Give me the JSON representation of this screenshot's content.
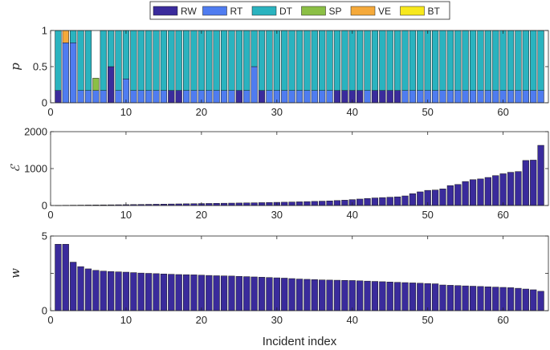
{
  "chart_data": [
    {
      "type": "bar",
      "stacked": true,
      "ylabel": "p",
      "ylim": [
        0,
        1
      ],
      "yticks": [
        0,
        0.5,
        1
      ],
      "ytick_labels": [
        "0",
        "0.5",
        "1"
      ],
      "xlim": [
        0,
        66
      ],
      "xticks": [
        0,
        10,
        20,
        30,
        40,
        50,
        60
      ],
      "xtick_labels": [
        "0",
        "10",
        "20",
        "30",
        "40",
        "50",
        "60"
      ],
      "legend_position": "top",
      "categories": [
        1,
        2,
        3,
        4,
        5,
        6,
        7,
        8,
        9,
        10,
        11,
        12,
        13,
        14,
        15,
        16,
        17,
        18,
        19,
        20,
        21,
        22,
        23,
        24,
        25,
        26,
        27,
        28,
        29,
        30,
        31,
        32,
        33,
        34,
        35,
        36,
        37,
        38,
        39,
        40,
        41,
        42,
        43,
        44,
        45,
        46,
        47,
        48,
        49,
        50,
        51,
        52,
        53,
        54,
        55,
        56,
        57,
        58,
        59,
        60,
        61,
        62,
        63,
        64,
        65
      ],
      "series": [
        {
          "name": "RW",
          "color": "#3a2b9c",
          "values": [
            0.17,
            0,
            0,
            0,
            0,
            0,
            0,
            0.5,
            0,
            0,
            0,
            0,
            0,
            0,
            0,
            0.17,
            0.17,
            0,
            0,
            0,
            0,
            0,
            0,
            0,
            0.17,
            0,
            0,
            0.17,
            0,
            0,
            0,
            0,
            0,
            0,
            0,
            0,
            0,
            0.17,
            0.17,
            0.17,
            0.17,
            0,
            0.17,
            0.17,
            0.17,
            0.17,
            0,
            0,
            0,
            0,
            0,
            0,
            0,
            0,
            0,
            0,
            0,
            0,
            0,
            0,
            0,
            0,
            0,
            0,
            0
          ]
        },
        {
          "name": "RT",
          "color": "#4f7cf0",
          "values": [
            0,
            0.83,
            0.83,
            0.17,
            0.17,
            0.17,
            0.17,
            0,
            0.17,
            0.33,
            0.17,
            0.17,
            0.17,
            0.17,
            0.17,
            0,
            0,
            0.17,
            0.17,
            0.17,
            0.17,
            0.17,
            0.17,
            0.17,
            0,
            0.17,
            0.5,
            0,
            0.17,
            0.17,
            0.17,
            0.17,
            0.17,
            0.17,
            0.17,
            0.17,
            0.17,
            0,
            0,
            0,
            0,
            0.17,
            0,
            0,
            0,
            0,
            0.17,
            0.17,
            0.17,
            0.17,
            0.17,
            0.17,
            0.17,
            0.17,
            0.17,
            0.17,
            0.17,
            0.17,
            0.17,
            0.17,
            0.17,
            0.17,
            0.17,
            0.17,
            0.17
          ]
        },
        {
          "name": "DT",
          "color": "#2ab3bf",
          "values": [
            0.83,
            0,
            0.17,
            0.83,
            0.83,
            0,
            0.83,
            0.5,
            0.83,
            0.67,
            0.83,
            0.83,
            0.83,
            0.83,
            0.83,
            0.83,
            0.83,
            0.83,
            0.83,
            0.83,
            0.83,
            0.83,
            0.83,
            0.83,
            0.83,
            0.83,
            0.5,
            0.83,
            0.83,
            0.83,
            0.83,
            0.83,
            0.83,
            0.83,
            0.83,
            0.83,
            0.83,
            0.83,
            0.83,
            0.83,
            0.83,
            0.83,
            0.83,
            0.83,
            0.83,
            0.83,
            0.83,
            0.83,
            0.83,
            0.83,
            0.83,
            0.83,
            0.83,
            0.83,
            0.83,
            0.83,
            0.83,
            0.83,
            0.83,
            0.83,
            0.83,
            0.83,
            0.83,
            0.83,
            0.83
          ]
        },
        {
          "name": "SP",
          "color": "#8bbf45",
          "values": [
            0,
            0,
            0,
            0,
            0,
            0.17,
            0,
            0,
            0,
            0,
            0,
            0,
            0,
            0,
            0,
            0,
            0,
            0,
            0,
            0,
            0,
            0,
            0,
            0,
            0,
            0,
            0,
            0,
            0,
            0,
            0,
            0,
            0,
            0,
            0,
            0,
            0,
            0,
            0,
            0,
            0,
            0,
            0,
            0,
            0,
            0,
            0,
            0,
            0,
            0,
            0,
            0,
            0,
            0,
            0,
            0,
            0,
            0,
            0,
            0,
            0,
            0,
            0,
            0,
            0
          ]
        },
        {
          "name": "VE",
          "color": "#f5a93a",
          "values": [
            0,
            0.17,
            0,
            0,
            0,
            0,
            0,
            0,
            0,
            0,
            0,
            0,
            0,
            0,
            0,
            0,
            0,
            0,
            0,
            0,
            0,
            0,
            0,
            0,
            0,
            0,
            0,
            0,
            0,
            0,
            0,
            0,
            0,
            0,
            0,
            0,
            0,
            0,
            0,
            0,
            0,
            0,
            0,
            0,
            0,
            0,
            0,
            0,
            0,
            0,
            0,
            0,
            0,
            0,
            0,
            0,
            0,
            0,
            0,
            0,
            0,
            0,
            0,
            0,
            0
          ]
        },
        {
          "name": "BT",
          "color": "#f7e81c",
          "values": [
            0,
            0,
            0,
            0,
            0,
            0,
            0,
            0,
            0,
            0,
            0,
            0,
            0,
            0,
            0,
            0,
            0,
            0,
            0,
            0,
            0,
            0,
            0,
            0,
            0,
            0,
            0,
            0,
            0,
            0,
            0,
            0,
            0,
            0,
            0,
            0,
            0,
            0,
            0,
            0,
            0,
            0,
            0,
            0,
            0,
            0,
            0,
            0,
            0,
            0,
            0,
            0,
            0,
            0,
            0,
            0,
            0,
            0,
            0,
            0,
            0,
            0,
            0,
            0,
            0
          ]
        }
      ]
    },
    {
      "type": "bar",
      "ylabel": "ℰ",
      "ylim": [
        0,
        2000
      ],
      "yticks": [
        0,
        1000,
        2000
      ],
      "ytick_labels": [
        "0",
        "1000",
        "2000"
      ],
      "xlim": [
        0,
        66
      ],
      "xticks": [
        0,
        10,
        20,
        30,
        40,
        50,
        60
      ],
      "xtick_labels": [
        "0",
        "10",
        "20",
        "30",
        "40",
        "50",
        "60"
      ],
      "color": "#3a2b9c",
      "categories": [
        1,
        2,
        3,
        4,
        5,
        6,
        7,
        8,
        9,
        10,
        11,
        12,
        13,
        14,
        15,
        16,
        17,
        18,
        19,
        20,
        21,
        22,
        23,
        24,
        25,
        26,
        27,
        28,
        29,
        30,
        31,
        32,
        33,
        34,
        35,
        36,
        37,
        38,
        39,
        40,
        41,
        42,
        43,
        44,
        45,
        46,
        47,
        48,
        49,
        50,
        51,
        52,
        53,
        54,
        55,
        56,
        57,
        58,
        59,
        60,
        61,
        62,
        63,
        64,
        65
      ],
      "values": [
        5,
        7,
        9,
        11,
        13,
        15,
        17,
        19,
        21,
        23,
        26,
        29,
        32,
        35,
        38,
        41,
        44,
        47,
        50,
        53,
        56,
        59,
        62,
        65,
        68,
        71,
        74,
        78,
        82,
        86,
        90,
        95,
        100,
        106,
        112,
        118,
        125,
        135,
        145,
        160,
        175,
        190,
        205,
        215,
        225,
        235,
        260,
        320,
        370,
        410,
        420,
        450,
        540,
        570,
        650,
        700,
        720,
        760,
        810,
        860,
        900,
        920,
        1220,
        1230,
        1630
      ]
    },
    {
      "type": "bar",
      "ylabel": "w",
      "xlabel": "Incident index",
      "ylim": [
        0,
        5
      ],
      "yticks": [
        0,
        2.5,
        5
      ],
      "ytick_labels": [
        "0",
        "",
        "5"
      ],
      "xlim": [
        0,
        66
      ],
      "xticks": [
        0,
        10,
        20,
        30,
        40,
        50,
        60
      ],
      "xtick_labels": [
        "0",
        "10",
        "20",
        "30",
        "40",
        "50",
        "60"
      ],
      "color": "#3a2b9c",
      "categories": [
        1,
        2,
        3,
        4,
        5,
        6,
        7,
        8,
        9,
        10,
        11,
        12,
        13,
        14,
        15,
        16,
        17,
        18,
        19,
        20,
        21,
        22,
        23,
        24,
        25,
        26,
        27,
        28,
        29,
        30,
        31,
        32,
        33,
        34,
        35,
        36,
        37,
        38,
        39,
        40,
        41,
        42,
        43,
        44,
        45,
        46,
        47,
        48,
        49,
        50,
        51,
        52,
        53,
        54,
        55,
        56,
        57,
        58,
        59,
        60,
        61,
        62,
        63,
        64,
        65
      ],
      "values": [
        4.45,
        4.45,
        3.25,
        2.95,
        2.8,
        2.7,
        2.65,
        2.62,
        2.6,
        2.58,
        2.55,
        2.52,
        2.5,
        2.48,
        2.46,
        2.44,
        2.42,
        2.41,
        2.4,
        2.38,
        2.36,
        2.34,
        2.33,
        2.32,
        2.3,
        2.28,
        2.26,
        2.24,
        2.22,
        2.2,
        2.18,
        2.15,
        2.12,
        2.1,
        2.08,
        2.06,
        2.05,
        2.04,
        2.03,
        2.02,
        2.0,
        1.98,
        1.96,
        1.94,
        1.92,
        1.9,
        1.88,
        1.86,
        1.84,
        1.82,
        1.8,
        1.72,
        1.7,
        1.68,
        1.66,
        1.64,
        1.62,
        1.6,
        1.58,
        1.56,
        1.54,
        1.5,
        1.45,
        1.4,
        1.3
      ]
    }
  ]
}
